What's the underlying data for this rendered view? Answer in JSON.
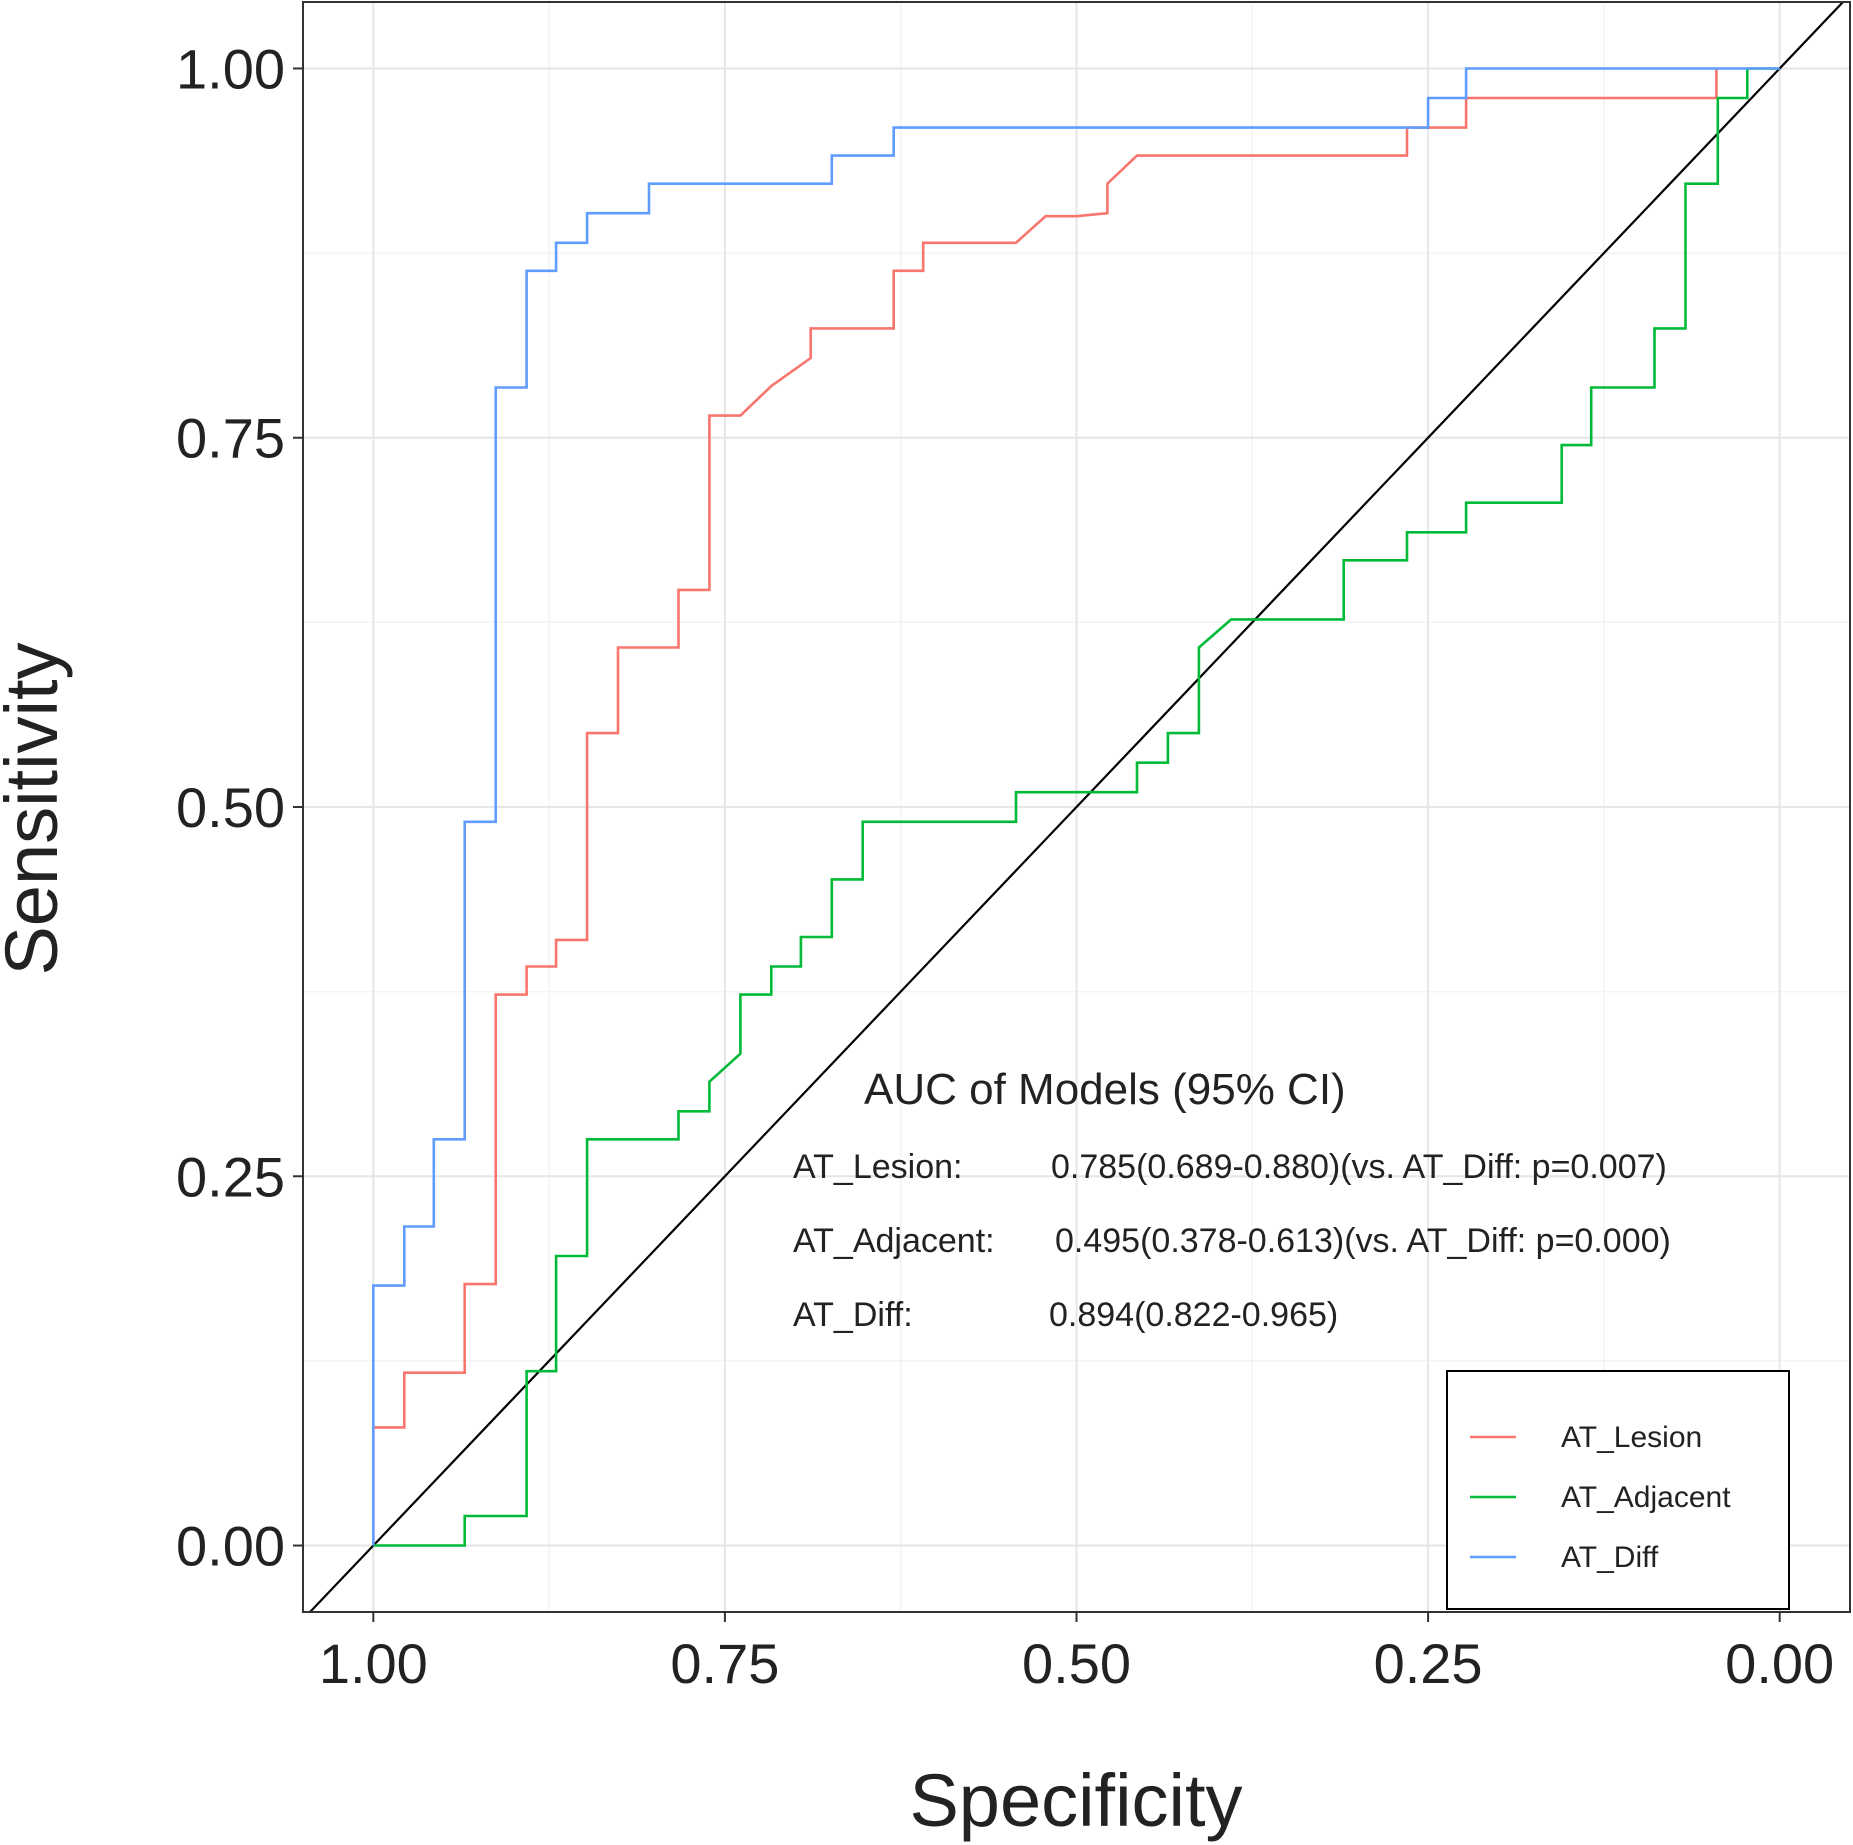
{
  "chart_data": {
    "type": "line",
    "title": "",
    "xlabel": "Specificity",
    "ylabel": "Sensitivity",
    "xlim": [
      1.05,
      -0.05
    ],
    "ylim": [
      -0.045,
      1.045
    ],
    "x_reversed": true,
    "grid": true,
    "x_ticks": [
      {
        "value": 1.0,
        "label": "1.00"
      },
      {
        "value": 0.75,
        "label": "0.75"
      },
      {
        "value": 0.5,
        "label": "0.50"
      },
      {
        "value": 0.25,
        "label": "0.25"
      },
      {
        "value": 0.0,
        "label": "0.00"
      }
    ],
    "y_ticks": [
      {
        "value": 0.0,
        "label": "0.00"
      },
      {
        "value": 0.25,
        "label": "0.25"
      },
      {
        "value": 0.5,
        "label": "0.50"
      },
      {
        "value": 0.75,
        "label": "0.75"
      },
      {
        "value": 1.0,
        "label": "1.00"
      }
    ],
    "reference_line": {
      "from": [
        1.0,
        0.0
      ],
      "to": [
        0.0,
        1.0
      ],
      "color": "#000000"
    },
    "series": [
      {
        "name": "AT_Lesion",
        "color": "#F8766D",
        "specificity": [
          1.0,
          1.0,
          0.978,
          0.978,
          0.935,
          0.935,
          0.913,
          0.913,
          0.891,
          0.891,
          0.87,
          0.87,
          0.848,
          0.848,
          0.826,
          0.826,
          0.783,
          0.783,
          0.761,
          0.761,
          0.739,
          0.717,
          0.689,
          0.689,
          0.63,
          0.63,
          0.609,
          0.609,
          0.543,
          0.522,
          0.5,
          0.478,
          0.478,
          0.457,
          0.265,
          0.265,
          0.223,
          0.223,
          0.045,
          0.045
        ],
        "sensitivity": [
          0.0,
          0.08,
          0.08,
          0.117,
          0.117,
          0.177,
          0.177,
          0.373,
          0.373,
          0.392,
          0.392,
          0.41,
          0.41,
          0.55,
          0.55,
          0.608,
          0.608,
          0.647,
          0.647,
          0.765,
          0.765,
          0.785,
          0.804,
          0.824,
          0.824,
          0.863,
          0.863,
          0.882,
          0.882,
          0.9,
          0.9,
          0.902,
          0.922,
          0.941,
          0.941,
          0.96,
          0.96,
          0.98,
          0.98,
          1.0
        ]
      },
      {
        "name": "AT_Adjacent",
        "color": "#00BA38",
        "specificity": [
          1.0,
          0.935,
          0.935,
          0.891,
          0.891,
          0.87,
          0.87,
          0.848,
          0.848,
          0.783,
          0.783,
          0.761,
          0.761,
          0.739,
          0.739,
          0.717,
          0.717,
          0.696,
          0.696,
          0.674,
          0.674,
          0.652,
          0.652,
          0.63,
          0.63,
          0.543,
          0.543,
          0.457,
          0.457,
          0.435,
          0.435,
          0.413,
          0.413,
          0.39,
          0.39,
          0.31,
          0.31,
          0.265,
          0.265,
          0.223,
          0.223,
          0.155,
          0.155,
          0.134,
          0.134,
          0.089,
          0.089,
          0.067,
          0.067,
          0.044,
          0.044,
          0.023,
          0.023,
          0.0
        ],
        "sensitivity": [
          0.0,
          0.0,
          0.02,
          0.02,
          0.118,
          0.118,
          0.196,
          0.196,
          0.275,
          0.275,
          0.294,
          0.294,
          0.314,
          0.333,
          0.373,
          0.373,
          0.392,
          0.392,
          0.412,
          0.412,
          0.451,
          0.451,
          0.49,
          0.49,
          0.49,
          0.49,
          0.51,
          0.51,
          0.53,
          0.53,
          0.55,
          0.55,
          0.608,
          0.627,
          0.627,
          0.627,
          0.667,
          0.667,
          0.686,
          0.686,
          0.706,
          0.706,
          0.745,
          0.745,
          0.784,
          0.784,
          0.824,
          0.824,
          0.922,
          0.922,
          0.98,
          0.98,
          1.0,
          1.0
        ]
      },
      {
        "name": "AT_Diff",
        "color": "#619CFF",
        "specificity": [
          1.0,
          1.0,
          0.978,
          0.978,
          0.957,
          0.957,
          0.935,
          0.935,
          0.913,
          0.913,
          0.891,
          0.891,
          0.87,
          0.87,
          0.848,
          0.848,
          0.804,
          0.804,
          0.674,
          0.674,
          0.63,
          0.63,
          0.25,
          0.25,
          0.223,
          0.223,
          0.0
        ],
        "sensitivity": [
          0.0,
          0.176,
          0.176,
          0.216,
          0.216,
          0.275,
          0.275,
          0.49,
          0.49,
          0.784,
          0.784,
          0.863,
          0.863,
          0.882,
          0.882,
          0.902,
          0.902,
          0.922,
          0.922,
          0.941,
          0.941,
          0.96,
          0.96,
          0.98,
          0.98,
          1.0,
          1.0
        ]
      }
    ],
    "annotation": {
      "title": "AUC of Models (95% CI)",
      "rows": [
        {
          "label": "AT_Lesion:",
          "value": "0.785(0.689-0.880)(vs. AT_Diff: p=0.007)"
        },
        {
          "label": "AT_Adjacent:",
          "value": "0.495(0.378-0.613)(vs. AT_Diff: p=0.000)"
        },
        {
          "label": "AT_Diff:",
          "value": "0.894(0.822-0.965)"
        }
      ]
    },
    "legend": {
      "position": "bottom-right",
      "entries": [
        "AT_Lesion",
        "AT_Adjacent",
        "AT_Diff"
      ]
    }
  }
}
